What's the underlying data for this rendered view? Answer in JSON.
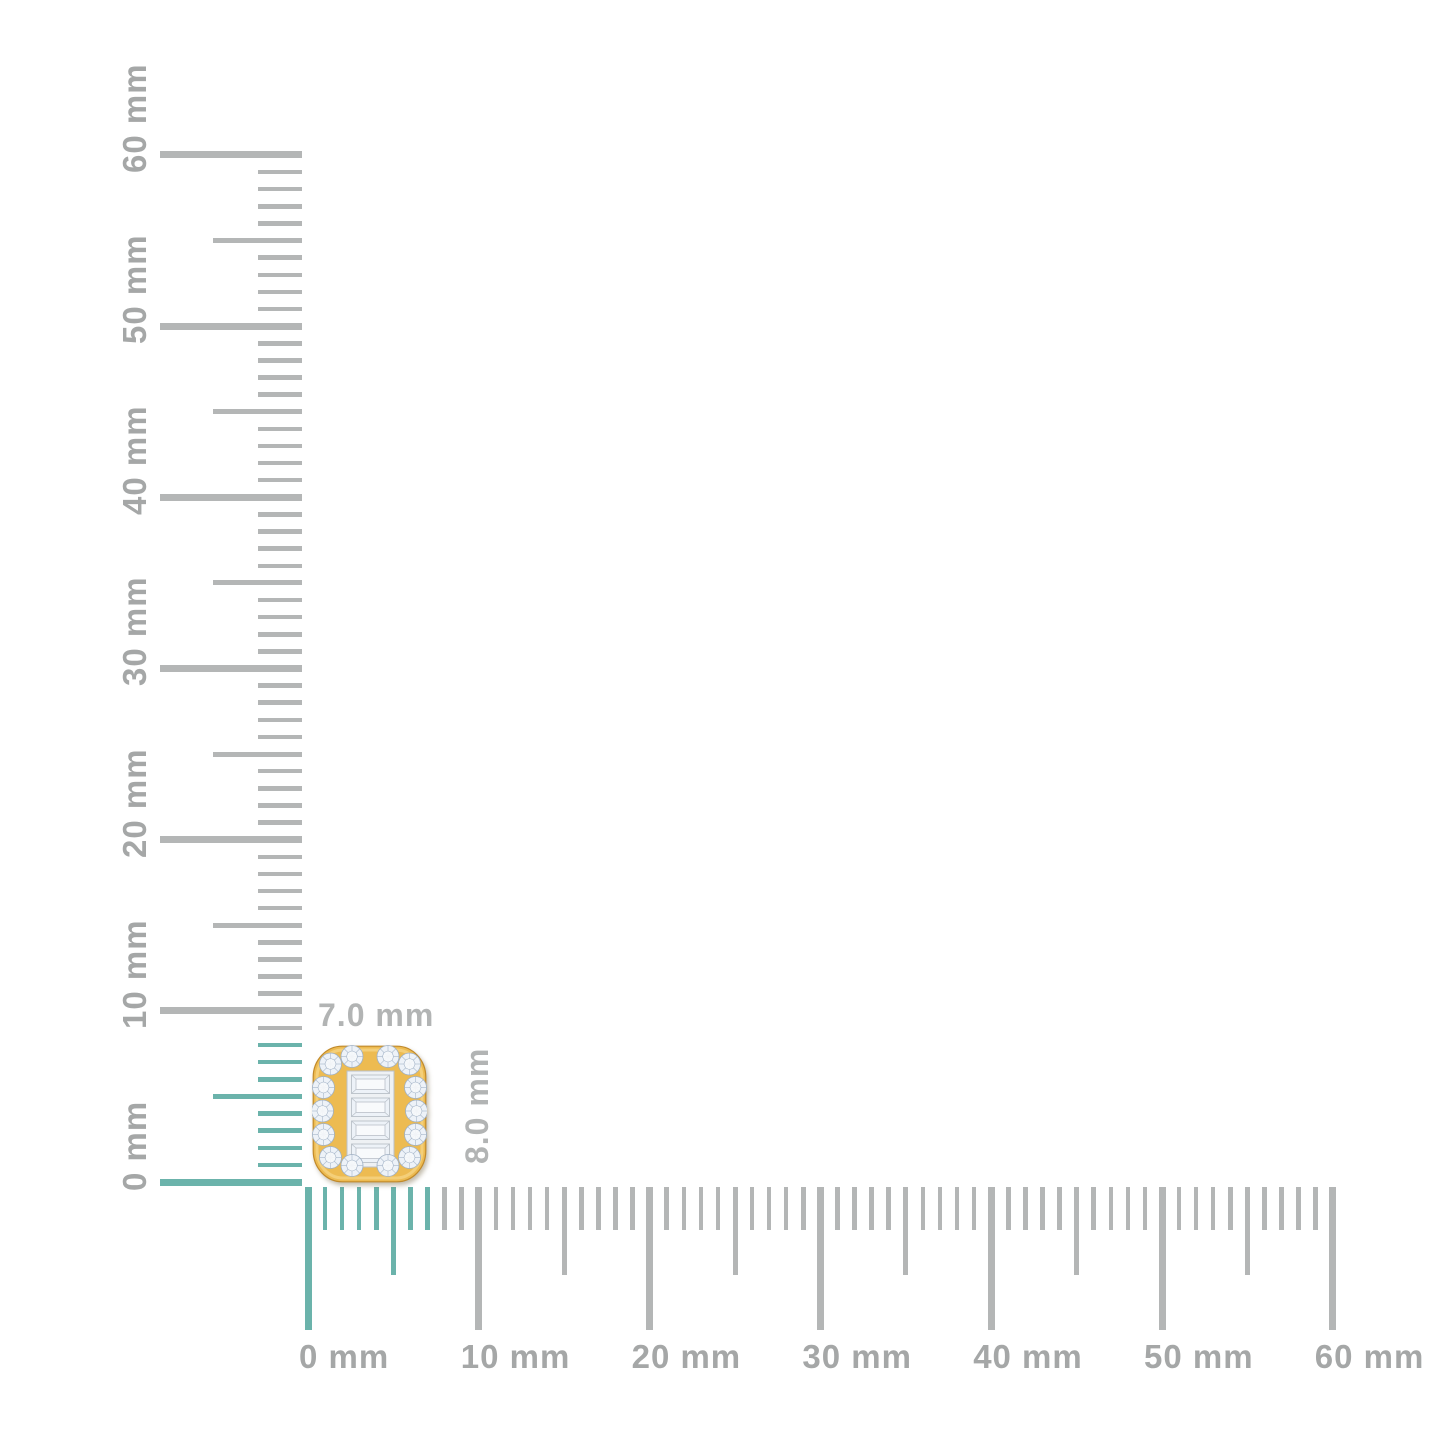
{
  "page": {
    "background": "#ffffff",
    "description": "Size guide diagram of a gold cushion-shaped diamond cluster stud shown against millimeter rulers"
  },
  "vertical_ruler": {
    "unit": "mm",
    "min_mm": 0,
    "max_mm": 60,
    "minor_step_mm": 1,
    "medium_step_mm": 5,
    "major_step_mm": 10,
    "labels": [
      "0 mm",
      "10 mm",
      "20 mm",
      "30 mm",
      "40 mm",
      "50 mm",
      "60 mm"
    ],
    "highlight_from_mm": 0,
    "highlight_to_mm": 8,
    "tick_color": "#b4b6b6",
    "highlight_color": "#6bb3ab",
    "label_color": "#a5a7a7"
  },
  "horizontal_ruler": {
    "unit": "mm",
    "min_mm": 0,
    "max_mm": 60,
    "minor_step_mm": 1,
    "medium_step_mm": 5,
    "major_step_mm": 10,
    "labels": [
      "0 mm",
      "10 mm",
      "20 mm",
      "30 mm",
      "40 mm",
      "50 mm",
      "60 mm"
    ],
    "highlight_from_mm": 0,
    "highlight_to_mm": 7,
    "tick_color": "#b4b6b6",
    "highlight_color": "#6bb3ab",
    "label_color": "#a5a7a7"
  },
  "product": {
    "name": "gold diamond cluster stud",
    "width_label": "7.0 mm",
    "height_label": "8.0 mm",
    "width_mm": 7.0,
    "height_mm": 8.0,
    "round_diamond_count": 14,
    "baguette_diamond_count": 4,
    "dimension_label_color": "#b2b4b4",
    "colors": {
      "gold": "#edbb51",
      "gold_light": "#f9e09b",
      "gold_dark": "#c18a2b",
      "channel": "#eef1f4",
      "diamond": "#edf2f8",
      "diamond_inner": "#f8fafc",
      "diamond_facet": "#9fb0c4",
      "baguette_edge": "#b9c0c8"
    }
  }
}
